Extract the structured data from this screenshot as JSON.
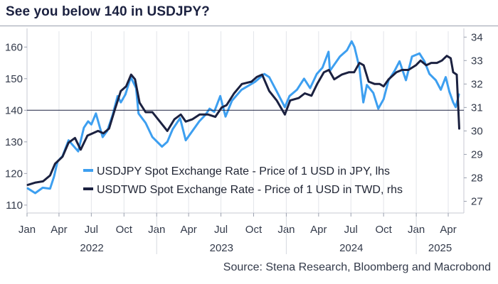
{
  "title": "See you below 140 in USDJPY?",
  "source": "Source: Stena Research, Bloomberg and Macrobond",
  "chart_data": {
    "type": "line",
    "title": "See you below 140 in USDJPY?",
    "x_tick_labels": [
      "Jan",
      "Apr",
      "Jul",
      "Oct",
      "Jan",
      "Apr",
      "Jul",
      "Oct",
      "Jan",
      "Apr",
      "Jul",
      "Oct",
      "Jan",
      "Apr"
    ],
    "x_tick_dates": [
      "2022-01-01",
      "2022-04-01",
      "2022-07-01",
      "2022-10-01",
      "2023-01-01",
      "2023-04-01",
      "2023-07-01",
      "2023-10-01",
      "2024-01-01",
      "2024-04-01",
      "2024-07-01",
      "2024-10-01",
      "2025-01-01",
      "2025-04-01"
    ],
    "year_labels": [
      "2022",
      "2023",
      "2024",
      "2025"
    ],
    "xlim": [
      "2022-01-01",
      "2025-05-15"
    ],
    "left_axis": {
      "ticks": [
        110,
        120,
        130,
        140,
        150,
        160
      ],
      "ylim": [
        107.5,
        165
      ]
    },
    "right_axis": {
      "ticks": [
        27,
        28,
        29,
        30,
        31,
        32,
        33,
        34
      ],
      "ylim": [
        26.5,
        34.25
      ]
    },
    "reference_line": {
      "axis": "left",
      "value": 140
    },
    "legend": {
      "position": "bottom-left"
    },
    "series": [
      {
        "name": "USDJPY Spot Exchange Rate - Price of 1 USD in JPY, lhs",
        "axis": "left",
        "color": "#3d9ff0",
        "points": [
          [
            "2022-01-03",
            115.3
          ],
          [
            "2022-01-24",
            113.8
          ],
          [
            "2022-02-14",
            115.5
          ],
          [
            "2022-03-07",
            115.2
          ],
          [
            "2022-03-18",
            119.0
          ],
          [
            "2022-03-28",
            123.8
          ],
          [
            "2022-04-11",
            125.5
          ],
          [
            "2022-04-28",
            130.5
          ],
          [
            "2022-05-25",
            127.0
          ],
          [
            "2022-06-10",
            134.5
          ],
          [
            "2022-06-22",
            136.5
          ],
          [
            "2022-07-01",
            135.5
          ],
          [
            "2022-07-14",
            139.0
          ],
          [
            "2022-08-02",
            131.5
          ],
          [
            "2022-08-15",
            133.5
          ],
          [
            "2022-08-30",
            138.5
          ],
          [
            "2022-09-13",
            144.5
          ],
          [
            "2022-09-22",
            142.5
          ],
          [
            "2022-10-05",
            145.0
          ],
          [
            "2022-10-20",
            150.5
          ],
          [
            "2022-11-04",
            147.0
          ],
          [
            "2022-11-11",
            139.0
          ],
          [
            "2022-12-01",
            136.0
          ],
          [
            "2022-12-20",
            131.5
          ],
          [
            "2023-01-16",
            128.5
          ],
          [
            "2023-01-31",
            130.0
          ],
          [
            "2023-02-15",
            134.0
          ],
          [
            "2023-03-08",
            137.5
          ],
          [
            "2023-03-24",
            130.5
          ],
          [
            "2023-04-12",
            133.5
          ],
          [
            "2023-05-01",
            136.5
          ],
          [
            "2023-05-18",
            138.5
          ],
          [
            "2023-05-30",
            140.5
          ],
          [
            "2023-06-12",
            139.5
          ],
          [
            "2023-06-29",
            144.5
          ],
          [
            "2023-07-14",
            138.0
          ],
          [
            "2023-08-01",
            143.0
          ],
          [
            "2023-08-28",
            146.5
          ],
          [
            "2023-09-20",
            148.0
          ],
          [
            "2023-10-05",
            149.0
          ],
          [
            "2023-10-31",
            151.5
          ],
          [
            "2023-11-14",
            150.5
          ],
          [
            "2023-12-05",
            146.0
          ],
          [
            "2023-12-28",
            141.0
          ],
          [
            "2024-01-10",
            144.5
          ],
          [
            "2024-01-31",
            146.5
          ],
          [
            "2024-02-20",
            150.0
          ],
          [
            "2024-03-08",
            147.0
          ],
          [
            "2024-03-27",
            151.5
          ],
          [
            "2024-04-12",
            153.5
          ],
          [
            "2024-04-29",
            158.5
          ],
          [
            "2024-05-03",
            152.5
          ],
          [
            "2024-05-31",
            157.0
          ],
          [
            "2024-06-20",
            159.0
          ],
          [
            "2024-07-03",
            161.8
          ],
          [
            "2024-07-11",
            160.0
          ],
          [
            "2024-07-25",
            153.5
          ],
          [
            "2024-08-05",
            142.5
          ],
          [
            "2024-08-15",
            148.0
          ],
          [
            "2024-09-02",
            145.5
          ],
          [
            "2024-09-16",
            140.5
          ],
          [
            "2024-10-01",
            143.5
          ],
          [
            "2024-10-15",
            149.5
          ],
          [
            "2024-11-01",
            152.5
          ],
          [
            "2024-11-15",
            155.5
          ],
          [
            "2024-12-03",
            149.5
          ],
          [
            "2024-12-20",
            157.0
          ],
          [
            "2025-01-10",
            158.0
          ],
          [
            "2025-01-24",
            155.5
          ],
          [
            "2025-02-07",
            151.5
          ],
          [
            "2025-02-25",
            149.5
          ],
          [
            "2025-03-11",
            146.5
          ],
          [
            "2025-03-25",
            150.5
          ],
          [
            "2025-04-04",
            146.0
          ],
          [
            "2025-04-15",
            142.5
          ],
          [
            "2025-04-22",
            141.0
          ],
          [
            "2025-04-28",
            143.5
          ],
          [
            "2025-05-01",
            145.0
          ]
        ]
      },
      {
        "name": "USDTWD Spot Exchange Rate - Price of 1 USD in TWD, rhs",
        "axis": "right",
        "color": "#1b2140",
        "points": [
          [
            "2022-01-03",
            27.7
          ],
          [
            "2022-01-25",
            27.8
          ],
          [
            "2022-02-15",
            27.85
          ],
          [
            "2022-03-07",
            28.1
          ],
          [
            "2022-03-21",
            28.6
          ],
          [
            "2022-04-11",
            28.9
          ],
          [
            "2022-04-28",
            29.5
          ],
          [
            "2022-05-16",
            29.7
          ],
          [
            "2022-06-01",
            29.2
          ],
          [
            "2022-06-20",
            29.8
          ],
          [
            "2022-07-05",
            29.9
          ],
          [
            "2022-07-20",
            30.0
          ],
          [
            "2022-08-04",
            29.9
          ],
          [
            "2022-08-20",
            30.1
          ],
          [
            "2022-09-05",
            30.9
          ],
          [
            "2022-09-22",
            31.7
          ],
          [
            "2022-10-07",
            31.9
          ],
          [
            "2022-10-21",
            32.4
          ],
          [
            "2022-11-01",
            32.2
          ],
          [
            "2022-11-14",
            31.2
          ],
          [
            "2022-12-01",
            30.8
          ],
          [
            "2022-12-20",
            30.8
          ],
          [
            "2023-01-10",
            30.4
          ],
          [
            "2023-01-31",
            30.0
          ],
          [
            "2023-02-20",
            30.5
          ],
          [
            "2023-03-10",
            30.7
          ],
          [
            "2023-03-24",
            30.4
          ],
          [
            "2023-04-12",
            30.5
          ],
          [
            "2023-05-02",
            30.7
          ],
          [
            "2023-05-26",
            30.7
          ],
          [
            "2023-06-15",
            30.6
          ],
          [
            "2023-07-03",
            31.0
          ],
          [
            "2023-07-17",
            31.1
          ],
          [
            "2023-08-07",
            31.6
          ],
          [
            "2023-08-29",
            32.0
          ],
          [
            "2023-09-25",
            32.1
          ],
          [
            "2023-10-10",
            32.3
          ],
          [
            "2023-10-25",
            32.4
          ],
          [
            "2023-11-14",
            31.7
          ],
          [
            "2023-12-05",
            31.3
          ],
          [
            "2023-12-28",
            30.7
          ],
          [
            "2024-01-12",
            31.3
          ],
          [
            "2024-02-05",
            31.4
          ],
          [
            "2024-02-22",
            31.6
          ],
          [
            "2024-03-12",
            31.5
          ],
          [
            "2024-03-28",
            32.0
          ],
          [
            "2024-04-16",
            32.5
          ],
          [
            "2024-04-30",
            32.6
          ],
          [
            "2024-05-15",
            32.2
          ],
          [
            "2024-06-05",
            32.4
          ],
          [
            "2024-06-25",
            32.5
          ],
          [
            "2024-07-10",
            32.5
          ],
          [
            "2024-07-25",
            32.9
          ],
          [
            "2024-08-06",
            32.8
          ],
          [
            "2024-08-20",
            32.1
          ],
          [
            "2024-09-06",
            32.0
          ],
          [
            "2024-09-20",
            32.0
          ],
          [
            "2024-10-01",
            31.9
          ],
          [
            "2024-10-15",
            32.2
          ],
          [
            "2024-11-06",
            32.5
          ],
          [
            "2024-11-22",
            32.6
          ],
          [
            "2024-12-10",
            32.6
          ],
          [
            "2024-12-31",
            32.8
          ],
          [
            "2025-01-13",
            33.0
          ],
          [
            "2025-01-29",
            32.8
          ],
          [
            "2025-02-12",
            32.9
          ],
          [
            "2025-02-28",
            32.9
          ],
          [
            "2025-03-14",
            33.0
          ],
          [
            "2025-03-28",
            33.2
          ],
          [
            "2025-04-08",
            33.1
          ],
          [
            "2025-04-15",
            32.5
          ],
          [
            "2025-04-25",
            32.4
          ],
          [
            "2025-05-02",
            30.1
          ]
        ]
      }
    ]
  }
}
